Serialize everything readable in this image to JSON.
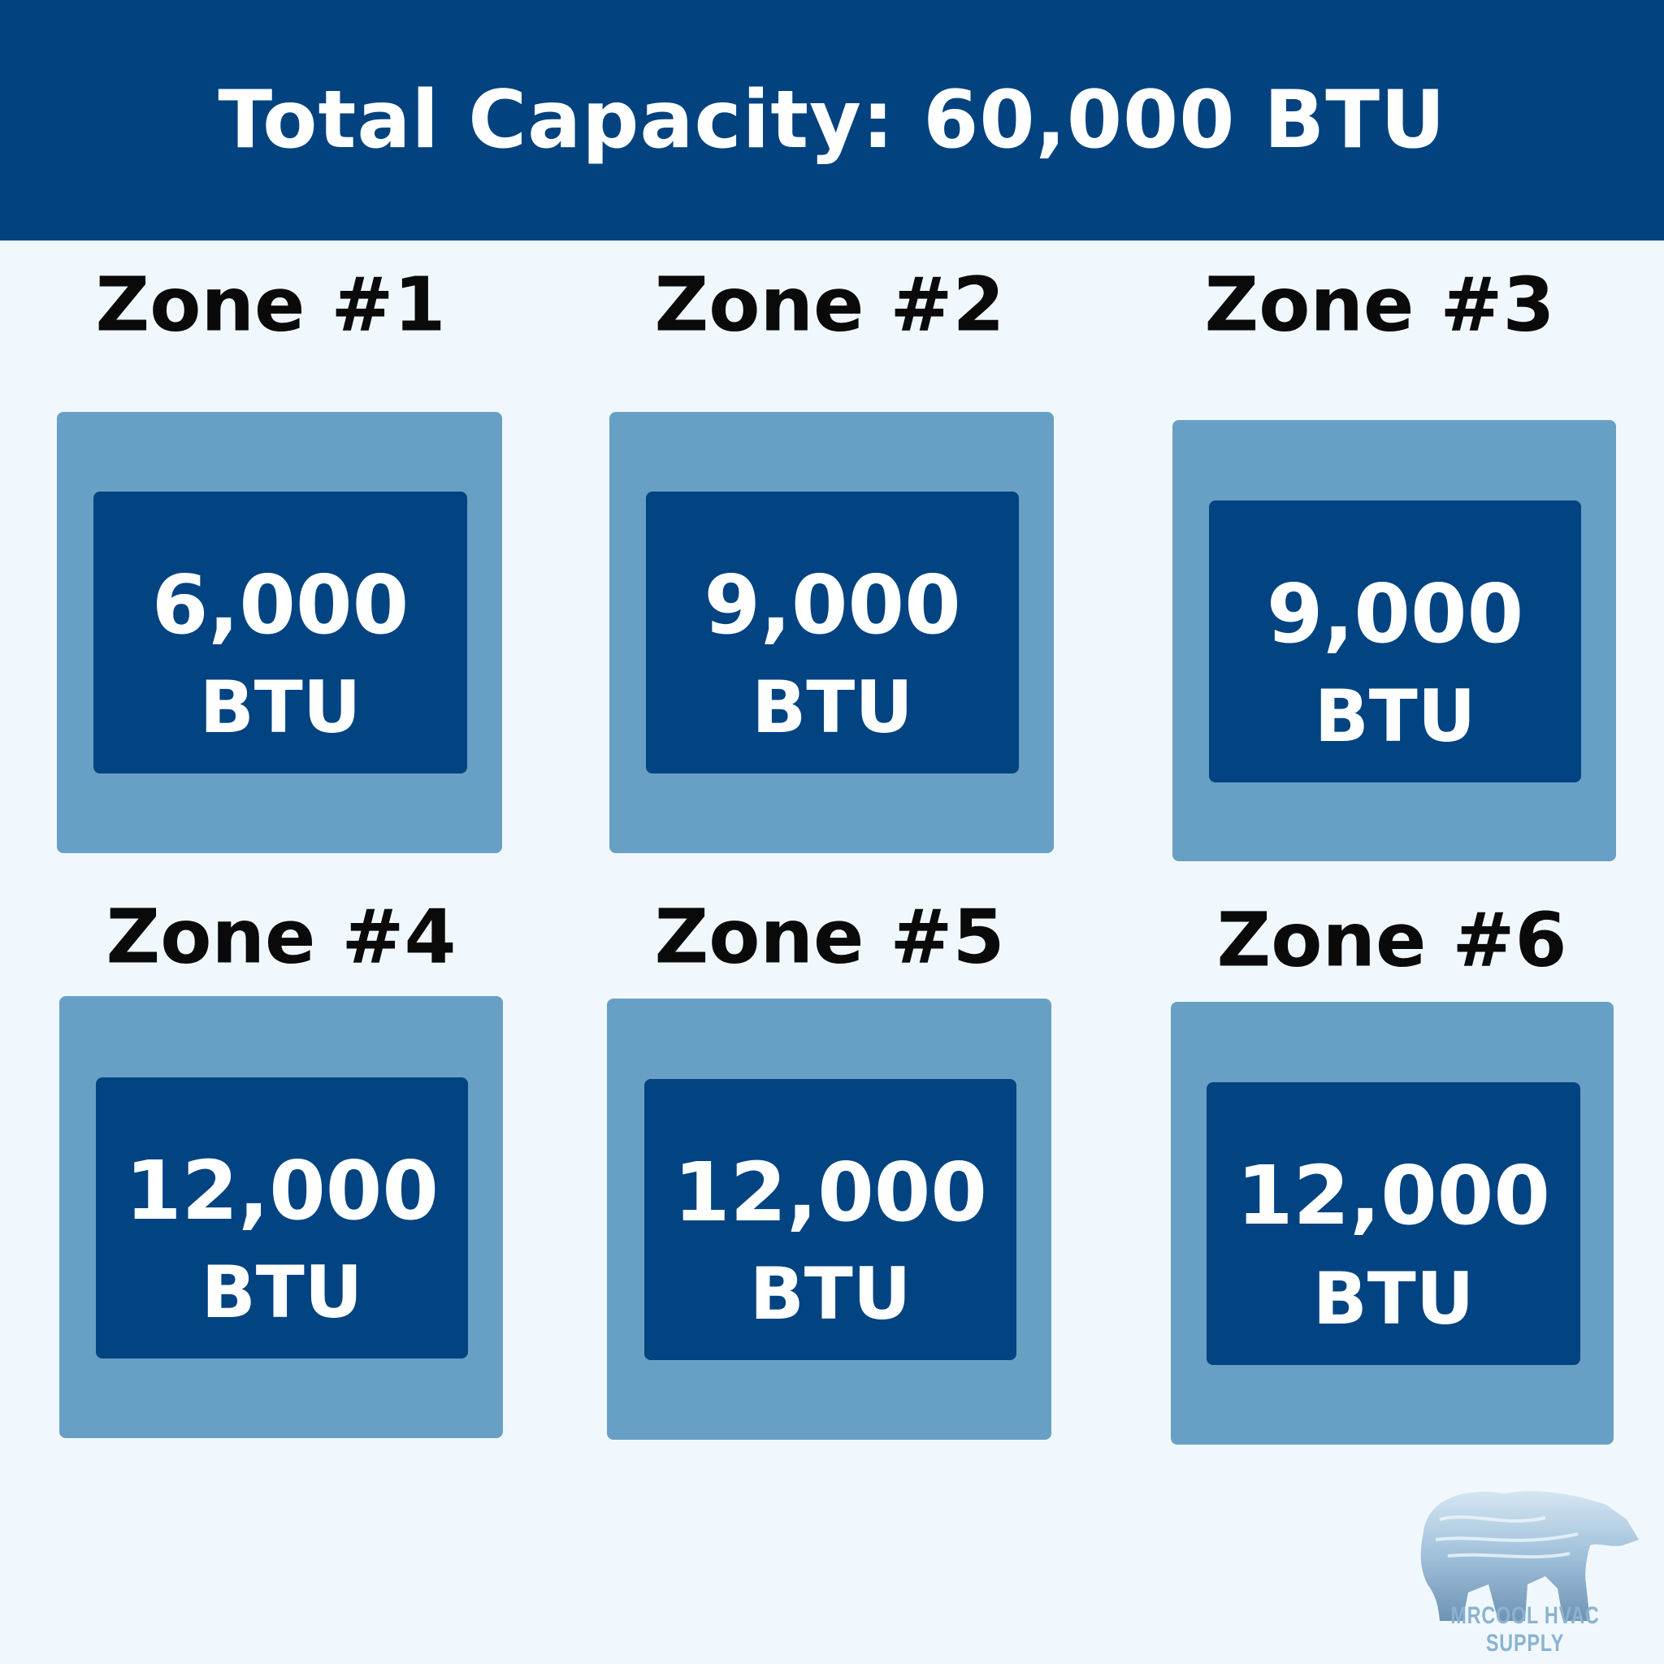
{
  "header": {
    "title": "Total Capacity: 60,000 BTU"
  },
  "colors": {
    "header_bg": "#02427f",
    "outer_box": "#68a0c5",
    "inner_box": "#024382",
    "background": "#f0f8fe"
  },
  "zones": [
    {
      "title": "Zone #1",
      "value": "6,000",
      "unit": "BTU"
    },
    {
      "title": "Zone #2",
      "value": "9,000",
      "unit": "BTU"
    },
    {
      "title": "Zone #3",
      "value": "9,000",
      "unit": "BTU"
    },
    {
      "title": "Zone #4",
      "value": "12,000",
      "unit": "BTU"
    },
    {
      "title": "Zone #5",
      "value": "12,000",
      "unit": "BTU"
    },
    {
      "title": "Zone #6",
      "value": "12,000",
      "unit": "BTU"
    }
  ],
  "logo": {
    "icon": "polar-bear-icon",
    "text": "MRCOOL HVAC SUPPLY"
  }
}
